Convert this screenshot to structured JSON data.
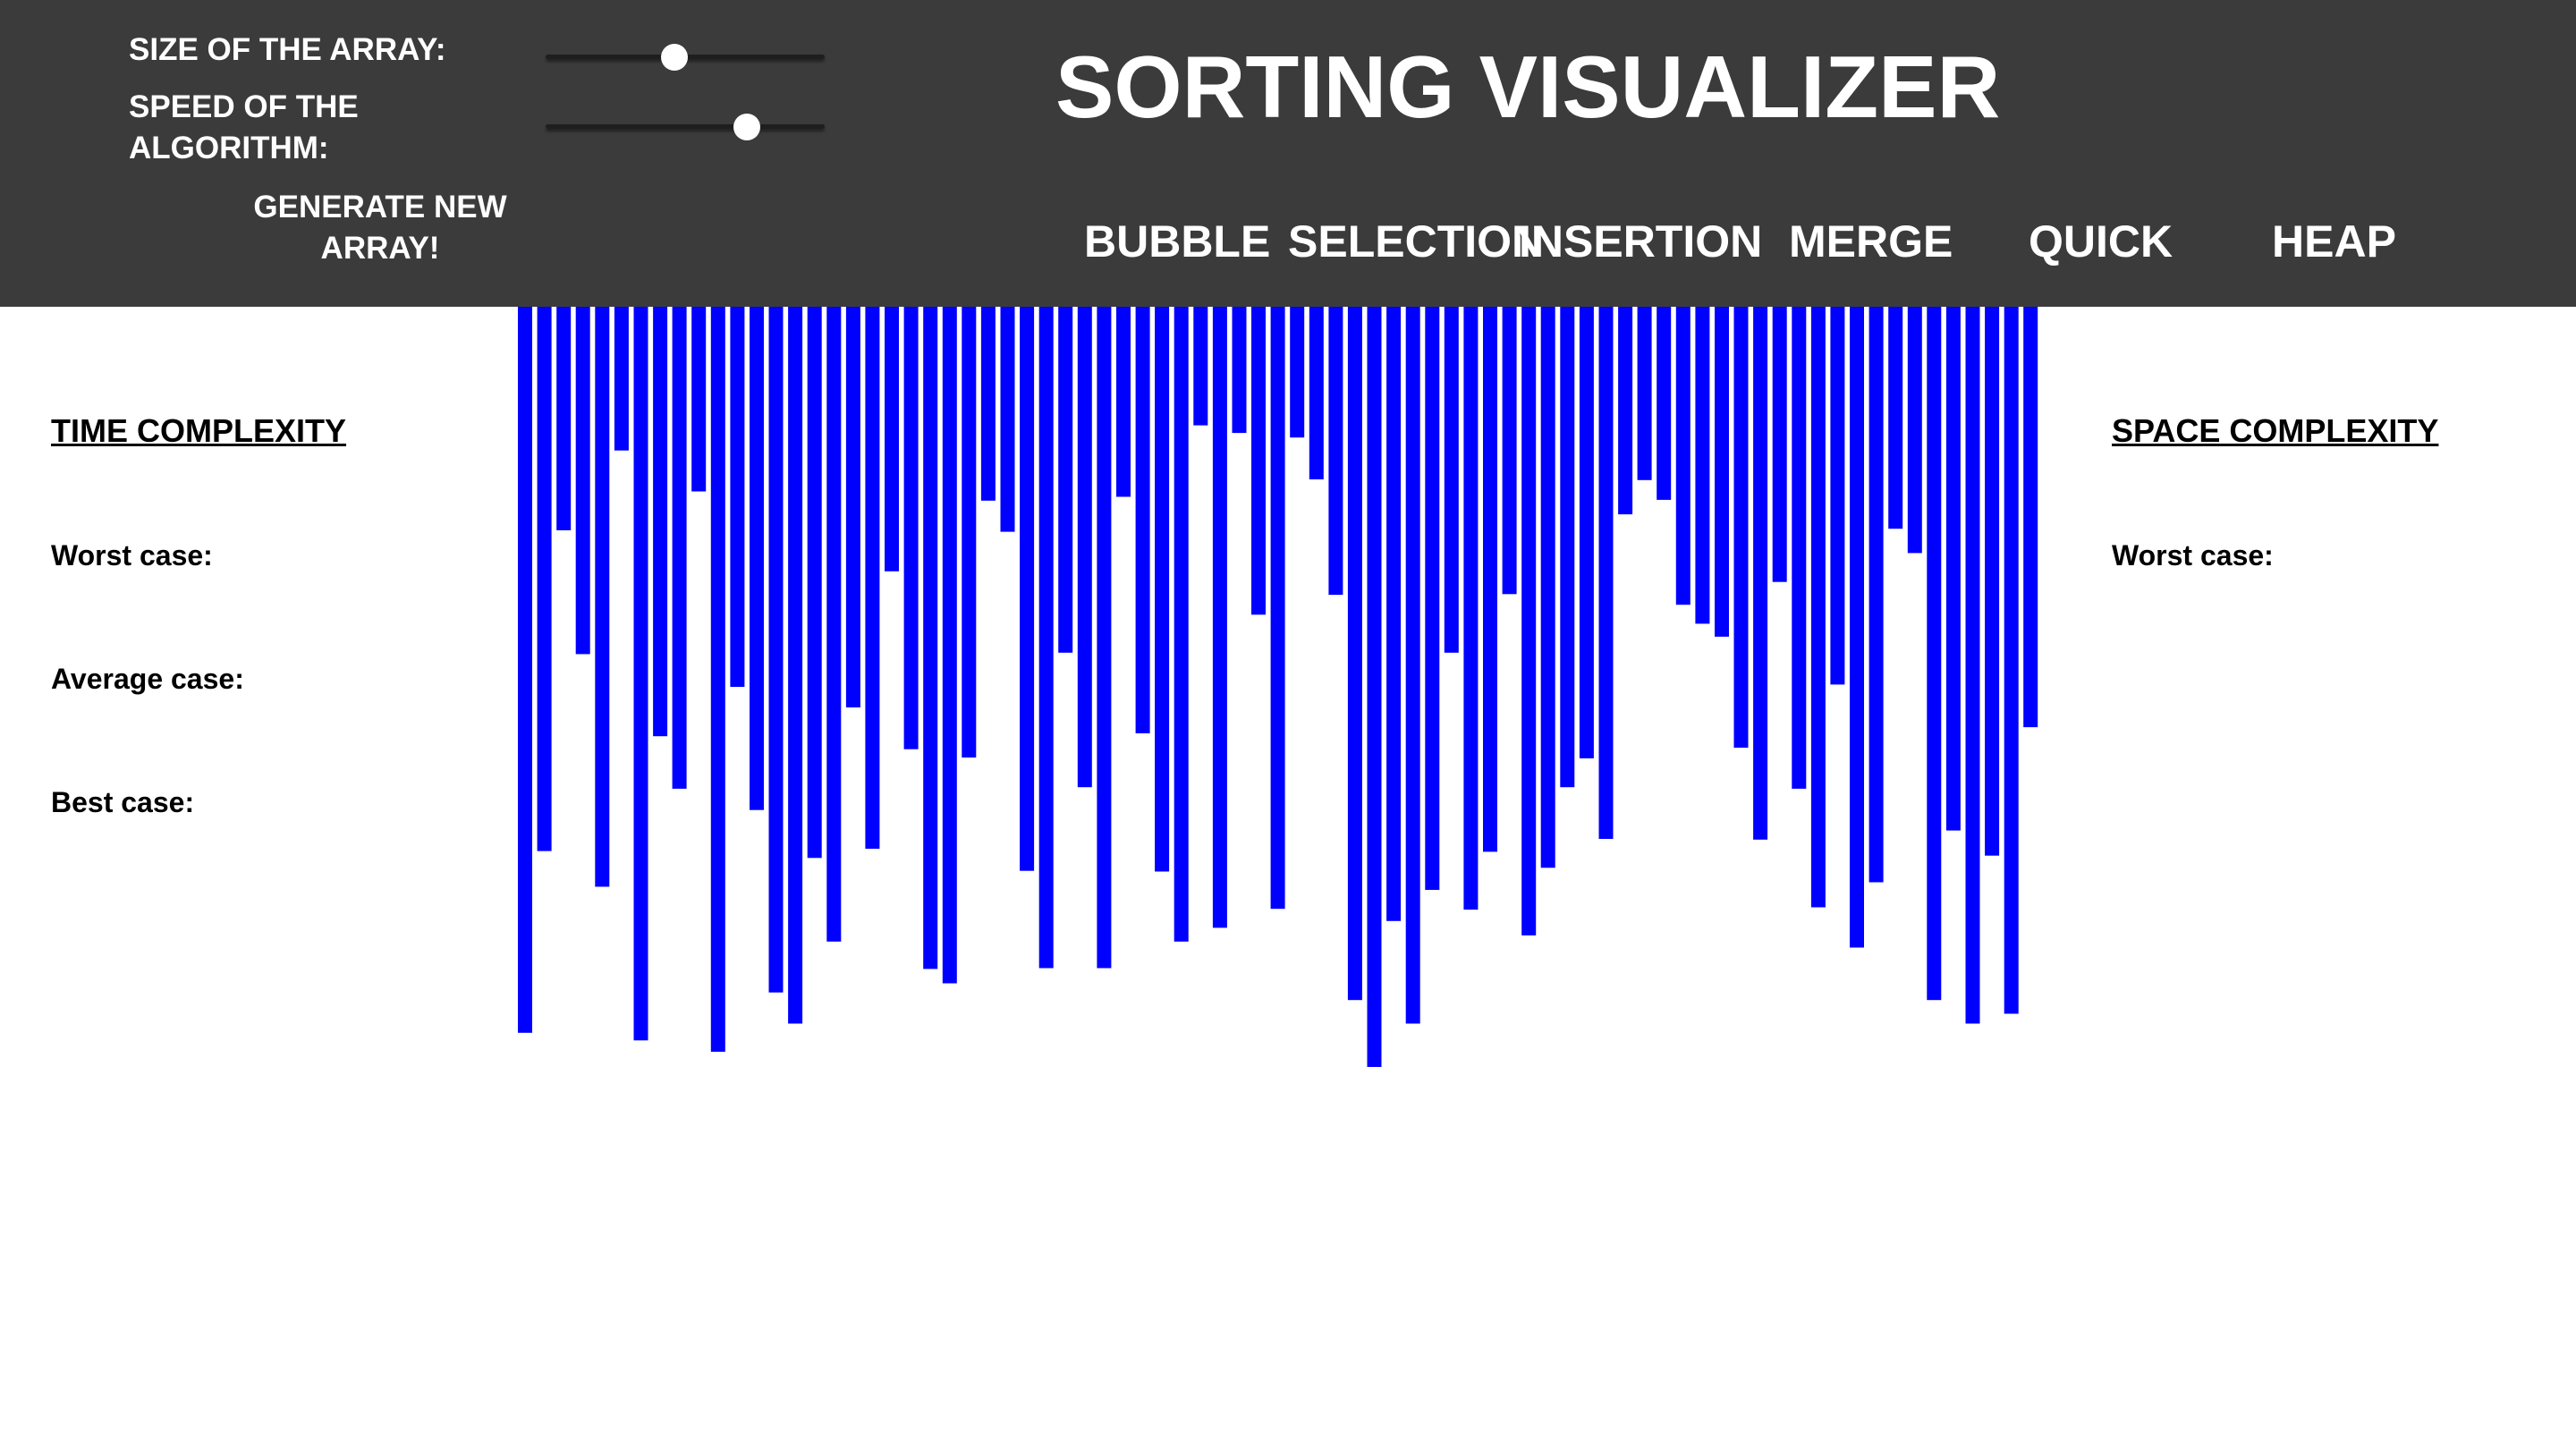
{
  "controls": {
    "size_label": "SIZE OF THE ARRAY:",
    "speed_label": "SPEED OF THE ALGORITHM:",
    "generate_label": "GENERATE NEW ARRAY!",
    "size_slider_value": 0.46,
    "speed_slider_value": 0.72
  },
  "header": {
    "title": "SORTING VISUALIZER"
  },
  "algorithms": [
    {
      "label": "BUBBLE"
    },
    {
      "label": "SELECTION"
    },
    {
      "label": "INSERTION"
    },
    {
      "label": "MERGE"
    },
    {
      "label": "QUICK"
    },
    {
      "label": "HEAP"
    }
  ],
  "time_complexity": {
    "heading": "TIME COMPLEXITY",
    "worst_label": "Worst case:",
    "average_label": "Average case:",
    "best_label": "Best case:"
  },
  "space_complexity": {
    "heading": "SPACE COMPLEXITY",
    "worst_label": "Worst case:"
  },
  "colors": {
    "header_bg": "#3b3b3b",
    "bar": "#0000ff"
  },
  "chart_data": {
    "type": "bar",
    "values": [
      0.955,
      0.716,
      0.294,
      0.457,
      0.763,
      0.189,
      0.965,
      0.565,
      0.634,
      0.243,
      0.98,
      0.5,
      0.662,
      0.902,
      0.943,
      0.725,
      0.835,
      0.527,
      0.713,
      0.348,
      0.582,
      0.871,
      0.89,
      0.593,
      0.255,
      0.296,
      0.742,
      0.87,
      0.455,
      0.632,
      0.87,
      0.25,
      0.561,
      0.743,
      0.835,
      0.156,
      0.817,
      0.166,
      0.405,
      0.792,
      0.172,
      0.227,
      0.379,
      0.912,
      1.0,
      0.808,
      0.943,
      0.767,
      0.455,
      0.793,
      0.717,
      0.378,
      0.827,
      0.738,
      0.632,
      0.594,
      0.7,
      0.273,
      0.228,
      0.254,
      0.392,
      0.417,
      0.434,
      0.58,
      0.701,
      0.362,
      0.634,
      0.79,
      0.497,
      0.843,
      0.757,
      0.292,
      0.324,
      0.912,
      0.689,
      0.943,
      0.722,
      0.93,
      0.553
    ]
  }
}
